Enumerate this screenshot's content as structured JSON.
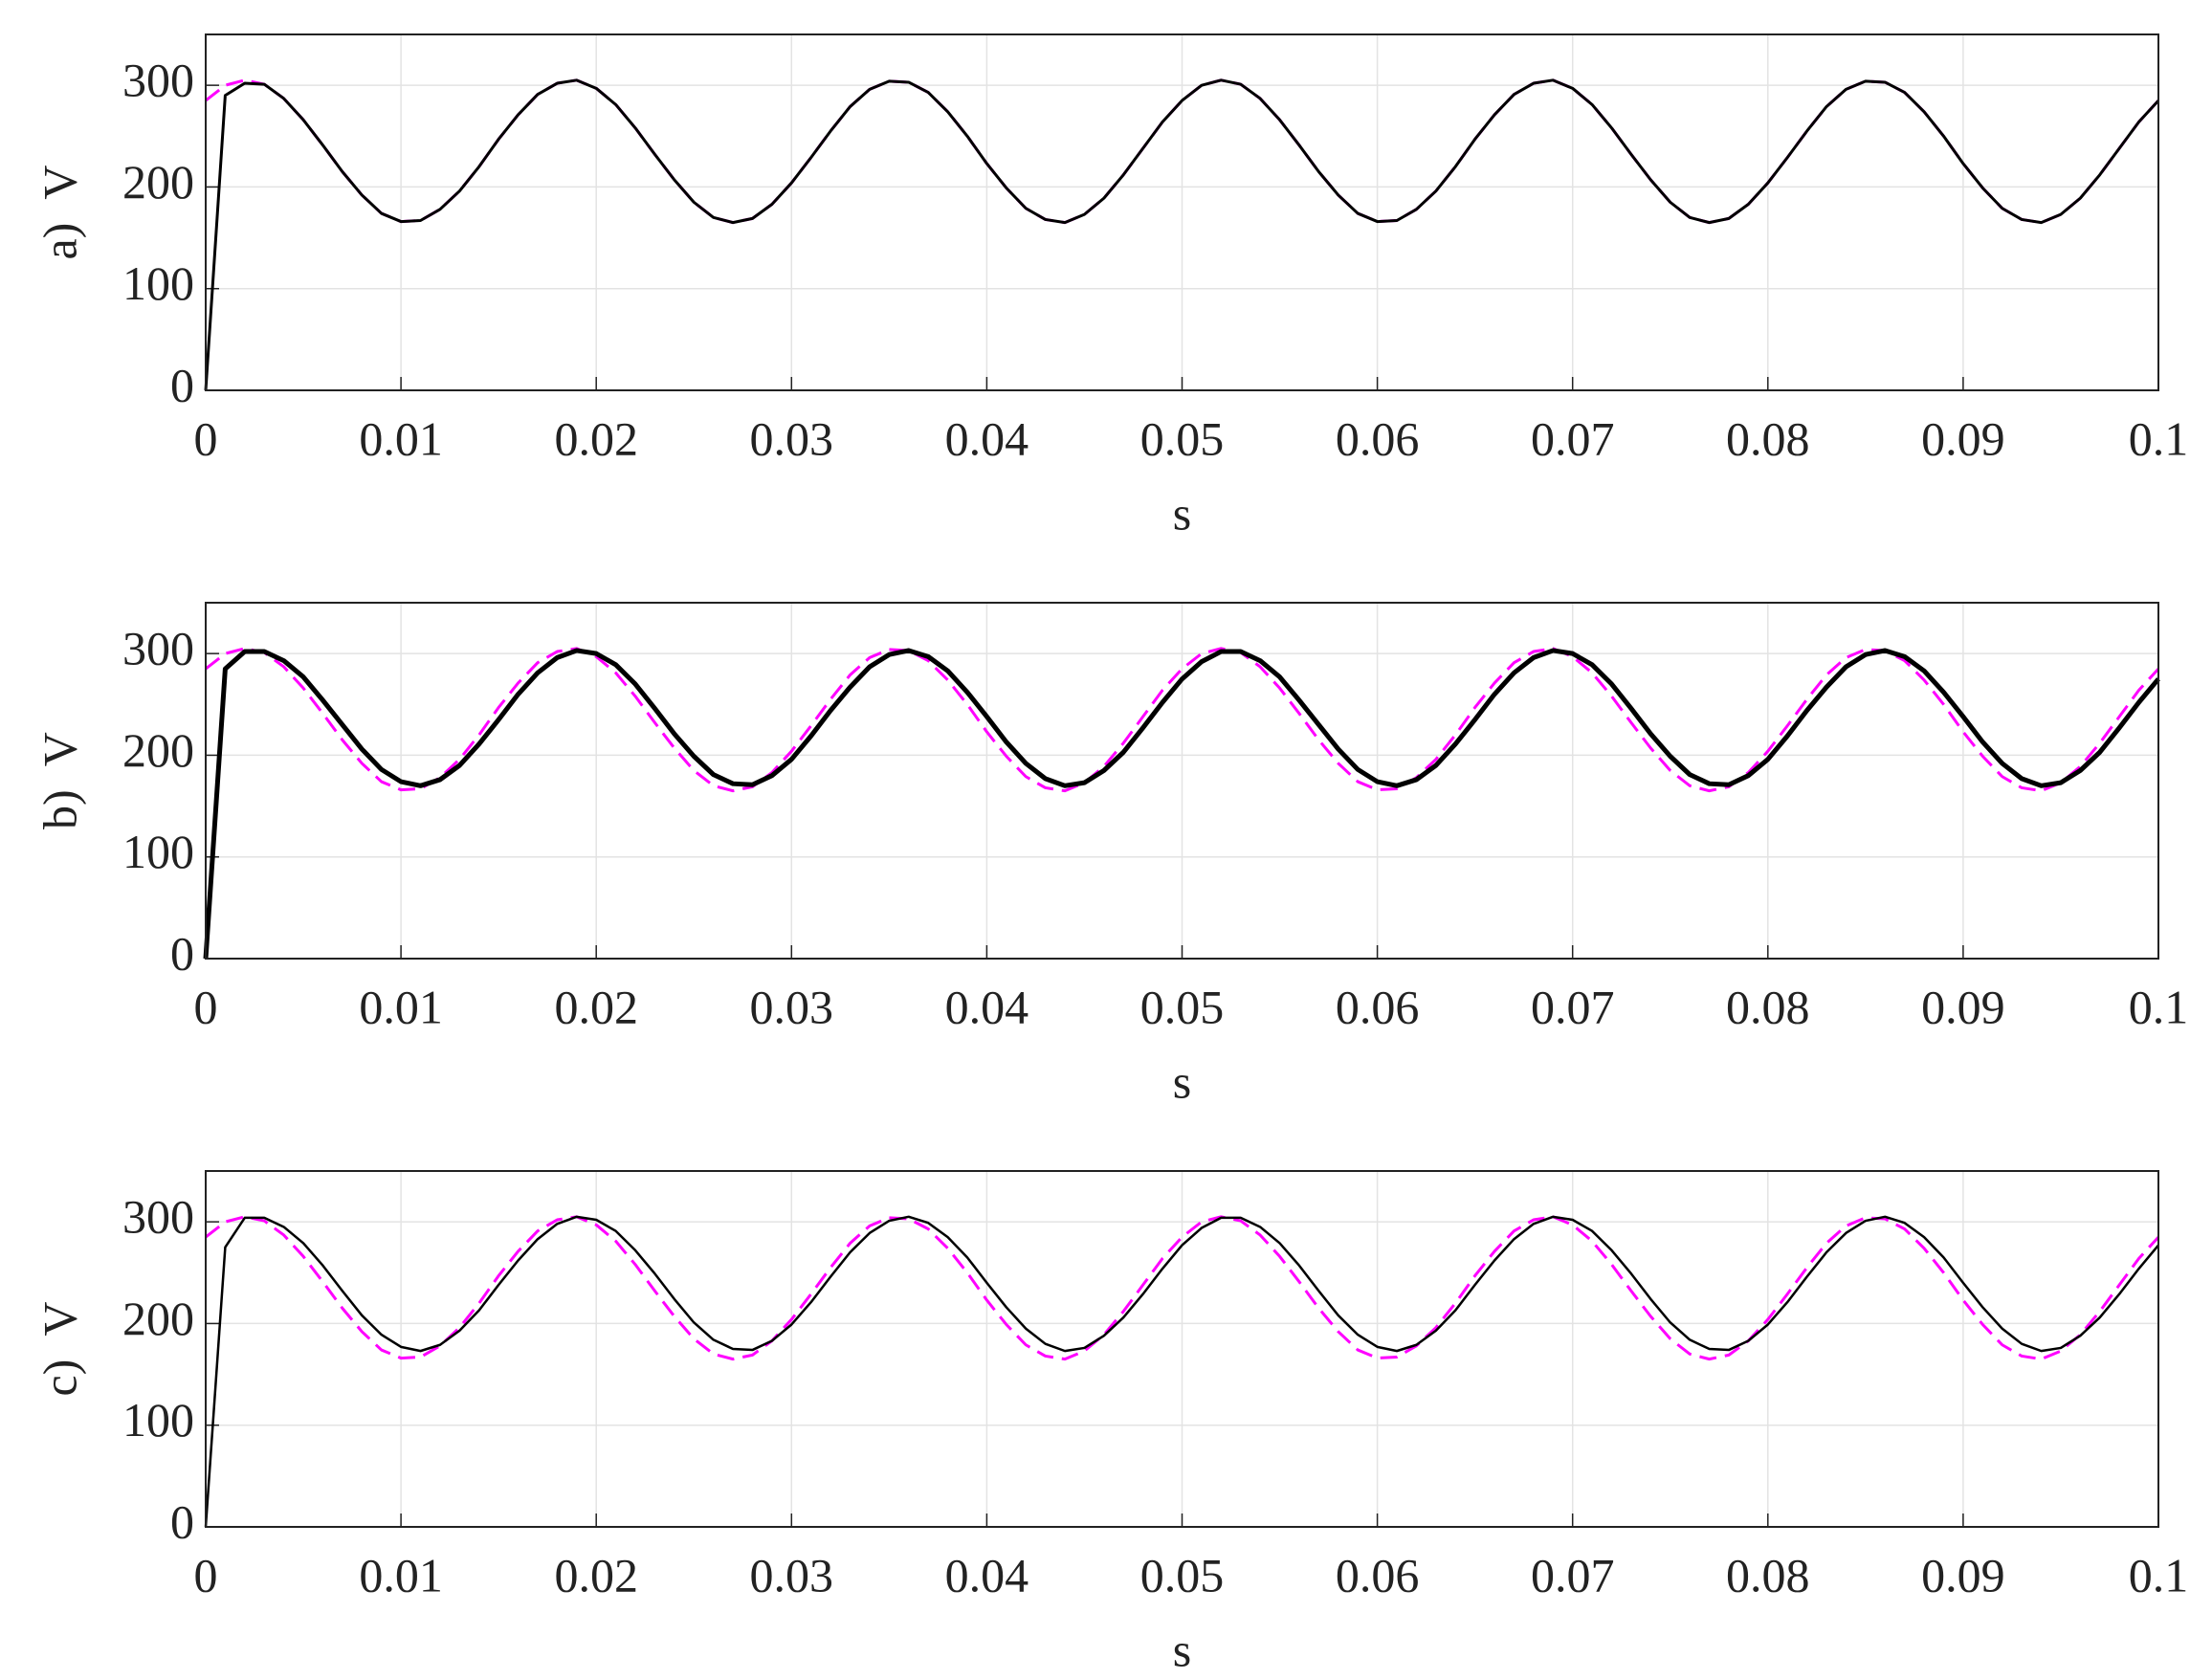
{
  "chart_data": [
    {
      "type": "line",
      "ylabel": "a)  V",
      "xlabel": "s",
      "xlim": [
        0,
        0.1
      ],
      "ylim": [
        0,
        350
      ],
      "xticks": [
        0,
        0.01,
        0.02,
        0.03,
        0.04,
        0.05,
        0.06,
        0.07,
        0.08,
        0.09,
        0.1
      ],
      "yticks": [
        0,
        100,
        200,
        300
      ],
      "grid": true,
      "x": [
        0,
        0.001,
        0.002,
        0.003,
        0.004,
        0.005,
        0.006,
        0.007,
        0.008,
        0.009,
        0.01,
        0.011,
        0.012,
        0.013,
        0.014,
        0.015,
        0.016,
        0.017,
        0.018,
        0.019,
        0.02,
        0.021,
        0.022,
        0.023,
        0.024,
        0.025,
        0.026,
        0.027,
        0.028,
        0.029,
        0.03,
        0.031,
        0.032,
        0.033,
        0.034,
        0.035,
        0.036,
        0.037,
        0.038,
        0.039,
        0.04,
        0.041,
        0.042,
        0.043,
        0.044,
        0.045,
        0.046,
        0.047,
        0.048,
        0.049,
        0.05,
        0.051,
        0.052,
        0.053,
        0.054,
        0.055,
        0.056,
        0.057,
        0.058,
        0.059,
        0.06,
        0.061,
        0.062,
        0.063,
        0.064,
        0.065,
        0.066,
        0.067,
        0.068,
        0.069,
        0.07,
        0.071,
        0.072,
        0.073,
        0.074,
        0.075,
        0.076,
        0.077,
        0.078,
        0.079,
        0.08,
        0.081,
        0.082,
        0.083,
        0.084,
        0.085,
        0.086,
        0.087,
        0.088,
        0.089,
        0.09,
        0.091,
        0.092,
        0.093,
        0.094,
        0.095,
        0.096,
        0.097,
        0.098,
        0.099,
        0.1
      ],
      "series": [
        {
          "color": "#ff00ff",
          "dash": "dashed",
          "values": [
            285,
            300,
            305,
            301,
            287,
            266,
            241,
            215,
            192,
            174,
            166,
            167,
            178,
            196,
            220,
            247,
            271,
            291,
            302,
            305,
            297,
            281,
            258,
            232,
            207,
            185,
            170,
            165,
            169,
            183,
            204,
            229,
            255,
            279,
            296,
            304,
            303,
            293,
            274,
            250,
            223,
            199,
            179,
            168,
            165,
            173,
            189,
            212,
            238,
            264,
            285,
            300,
            305,
            301,
            287,
            266,
            241,
            215,
            192,
            174,
            166,
            167,
            178,
            196,
            220,
            247,
            271,
            291,
            302,
            305,
            297,
            281,
            258,
            232,
            207,
            185,
            170,
            165,
            169,
            183,
            204,
            229,
            255,
            279,
            296,
            304,
            303,
            293,
            274,
            250,
            223,
            199,
            179,
            168,
            165,
            173,
            189,
            212,
            238,
            264,
            285
          ]
        },
        {
          "color": "#000000",
          "dash": "solid",
          "values": [
            0,
            290,
            302,
            301,
            287,
            266,
            241,
            215,
            192,
            174,
            166,
            167,
            178,
            196,
            220,
            247,
            271,
            291,
            302,
            305,
            297,
            281,
            258,
            232,
            207,
            185,
            170,
            165,
            169,
            183,
            204,
            229,
            255,
            279,
            296,
            304,
            303,
            293,
            274,
            250,
            223,
            199,
            179,
            168,
            165,
            173,
            189,
            212,
            238,
            264,
            285,
            300,
            305,
            301,
            287,
            266,
            241,
            215,
            192,
            174,
            166,
            167,
            178,
            196,
            220,
            247,
            271,
            291,
            302,
            305,
            297,
            281,
            258,
            232,
            207,
            185,
            170,
            165,
            169,
            183,
            204,
            229,
            255,
            279,
            296,
            304,
            303,
            293,
            274,
            250,
            223,
            199,
            179,
            168,
            165,
            173,
            189,
            212,
            238,
            264,
            285
          ]
        }
      ]
    },
    {
      "type": "line",
      "ylabel": "b)  V",
      "xlabel": "s",
      "xlim": [
        0,
        0.1
      ],
      "ylim": [
        0,
        350
      ],
      "xticks": [
        0,
        0.01,
        0.02,
        0.03,
        0.04,
        0.05,
        0.06,
        0.07,
        0.08,
        0.09,
        0.1
      ],
      "yticks": [
        0,
        100,
        200,
        300
      ],
      "grid": true,
      "x": [
        0,
        0.001,
        0.002,
        0.003,
        0.004,
        0.005,
        0.006,
        0.007,
        0.008,
        0.009,
        0.01,
        0.011,
        0.012,
        0.013,
        0.014,
        0.015,
        0.016,
        0.017,
        0.018,
        0.019,
        0.02,
        0.021,
        0.022,
        0.023,
        0.024,
        0.025,
        0.026,
        0.027,
        0.028,
        0.029,
        0.03,
        0.031,
        0.032,
        0.033,
        0.034,
        0.035,
        0.036,
        0.037,
        0.038,
        0.039,
        0.04,
        0.041,
        0.042,
        0.043,
        0.044,
        0.045,
        0.046,
        0.047,
        0.048,
        0.049,
        0.05,
        0.051,
        0.052,
        0.053,
        0.054,
        0.055,
        0.056,
        0.057,
        0.058,
        0.059,
        0.06,
        0.061,
        0.062,
        0.063,
        0.064,
        0.065,
        0.066,
        0.067,
        0.068,
        0.069,
        0.07,
        0.071,
        0.072,
        0.073,
        0.074,
        0.075,
        0.076,
        0.077,
        0.078,
        0.079,
        0.08,
        0.081,
        0.082,
        0.083,
        0.084,
        0.085,
        0.086,
        0.087,
        0.088,
        0.089,
        0.09,
        0.091,
        0.092,
        0.093,
        0.094,
        0.095,
        0.096,
        0.097,
        0.098,
        0.099,
        0.1
      ],
      "series": [
        {
          "color": "#ff00ff",
          "dash": "dashed",
          "values": [
            285,
            300,
            305,
            301,
            287,
            266,
            241,
            215,
            192,
            174,
            166,
            167,
            178,
            196,
            220,
            247,
            271,
            291,
            302,
            305,
            297,
            281,
            258,
            232,
            207,
            185,
            170,
            165,
            169,
            183,
            204,
            229,
            255,
            279,
            296,
            304,
            303,
            293,
            274,
            250,
            223,
            199,
            179,
            168,
            165,
            173,
            189,
            212,
            238,
            264,
            285,
            300,
            305,
            301,
            287,
            266,
            241,
            215,
            192,
            174,
            166,
            167,
            178,
            196,
            220,
            247,
            271,
            291,
            302,
            305,
            297,
            281,
            258,
            232,
            207,
            185,
            170,
            165,
            169,
            183,
            204,
            229,
            255,
            279,
            296,
            304,
            303,
            293,
            274,
            250,
            223,
            199,
            179,
            168,
            165,
            173,
            189,
            212,
            238,
            264,
            285
          ]
        },
        {
          "color": "#000000",
          "dash": "solid",
          "values": [
            0,
            285,
            302,
            302,
            293,
            277,
            254,
            230,
            206,
            186,
            174,
            170,
            176,
            190,
            211,
            235,
            260,
            281,
            296,
            303,
            300,
            289,
            270,
            246,
            221,
            199,
            181,
            172,
            171,
            180,
            196,
            219,
            244,
            267,
            287,
            299,
            303,
            297,
            283,
            262,
            238,
            213,
            192,
            177,
            170,
            173,
            185,
            203,
            227,
            252,
            275,
            292,
            302,
            302,
            293,
            277,
            254,
            230,
            206,
            186,
            174,
            170,
            176,
            190,
            211,
            235,
            260,
            281,
            296,
            303,
            300,
            289,
            270,
            246,
            221,
            199,
            181,
            172,
            171,
            180,
            196,
            219,
            244,
            267,
            287,
            299,
            303,
            297,
            283,
            262,
            238,
            213,
            192,
            177,
            170,
            173,
            185,
            203,
            227,
            252,
            275
          ]
        }
      ]
    },
    {
      "type": "line",
      "ylabel": "c)  V",
      "xlabel": "s",
      "xlim": [
        0,
        0.1
      ],
      "ylim": [
        0,
        350
      ],
      "xticks": [
        0,
        0.01,
        0.02,
        0.03,
        0.04,
        0.05,
        0.06,
        0.07,
        0.08,
        0.09,
        0.1
      ],
      "yticks": [
        0,
        100,
        200,
        300
      ],
      "grid": true,
      "x": [
        0,
        0.001,
        0.002,
        0.003,
        0.004,
        0.005,
        0.006,
        0.007,
        0.008,
        0.009,
        0.01,
        0.011,
        0.012,
        0.013,
        0.014,
        0.015,
        0.016,
        0.017,
        0.018,
        0.019,
        0.02,
        0.021,
        0.022,
        0.023,
        0.024,
        0.025,
        0.026,
        0.027,
        0.028,
        0.029,
        0.03,
        0.031,
        0.032,
        0.033,
        0.034,
        0.035,
        0.036,
        0.037,
        0.038,
        0.039,
        0.04,
        0.041,
        0.042,
        0.043,
        0.044,
        0.045,
        0.046,
        0.047,
        0.048,
        0.049,
        0.05,
        0.051,
        0.052,
        0.053,
        0.054,
        0.055,
        0.056,
        0.057,
        0.058,
        0.059,
        0.06,
        0.061,
        0.062,
        0.063,
        0.064,
        0.065,
        0.066,
        0.067,
        0.068,
        0.069,
        0.07,
        0.071,
        0.072,
        0.073,
        0.074,
        0.075,
        0.076,
        0.077,
        0.078,
        0.079,
        0.08,
        0.081,
        0.082,
        0.083,
        0.084,
        0.085,
        0.086,
        0.087,
        0.088,
        0.089,
        0.09,
        0.091,
        0.092,
        0.093,
        0.094,
        0.095,
        0.096,
        0.097,
        0.098,
        0.099,
        0.1
      ],
      "series": [
        {
          "color": "#ff00ff",
          "dash": "dashed",
          "values": [
            285,
            300,
            305,
            301,
            287,
            266,
            241,
            215,
            192,
            174,
            166,
            167,
            178,
            196,
            220,
            247,
            271,
            291,
            302,
            305,
            297,
            281,
            258,
            232,
            207,
            185,
            170,
            165,
            169,
            183,
            204,
            229,
            255,
            279,
            296,
            304,
            303,
            293,
            274,
            250,
            223,
            199,
            179,
            168,
            165,
            173,
            189,
            212,
            238,
            264,
            285,
            300,
            305,
            301,
            287,
            266,
            241,
            215,
            192,
            174,
            166,
            167,
            178,
            196,
            220,
            247,
            271,
            291,
            302,
            305,
            297,
            281,
            258,
            232,
            207,
            185,
            170,
            165,
            169,
            183,
            204,
            229,
            255,
            279,
            296,
            304,
            303,
            293,
            274,
            250,
            223,
            199,
            179,
            168,
            165,
            173,
            189,
            212,
            238,
            264,
            285
          ]
        },
        {
          "color": "#000000",
          "dash": "solid",
          "values": [
            0,
            275,
            304,
            304,
            295,
            279,
            257,
            232,
            208,
            189,
            177,
            173,
            179,
            193,
            213,
            238,
            262,
            283,
            298,
            305,
            302,
            291,
            272,
            249,
            224,
            201,
            184,
            175,
            174,
            183,
            199,
            221,
            246,
            270,
            289,
            301,
            305,
            299,
            285,
            265,
            240,
            216,
            195,
            180,
            173,
            176,
            188,
            206,
            229,
            254,
            277,
            294,
            304,
            304,
            295,
            279,
            257,
            232,
            208,
            189,
            177,
            173,
            179,
            193,
            213,
            238,
            262,
            283,
            298,
            305,
            302,
            291,
            272,
            249,
            224,
            201,
            184,
            175,
            174,
            183,
            199,
            221,
            246,
            270,
            289,
            301,
            305,
            299,
            285,
            265,
            240,
            216,
            195,
            180,
            173,
            176,
            188,
            206,
            229,
            254,
            277
          ]
        }
      ]
    }
  ]
}
